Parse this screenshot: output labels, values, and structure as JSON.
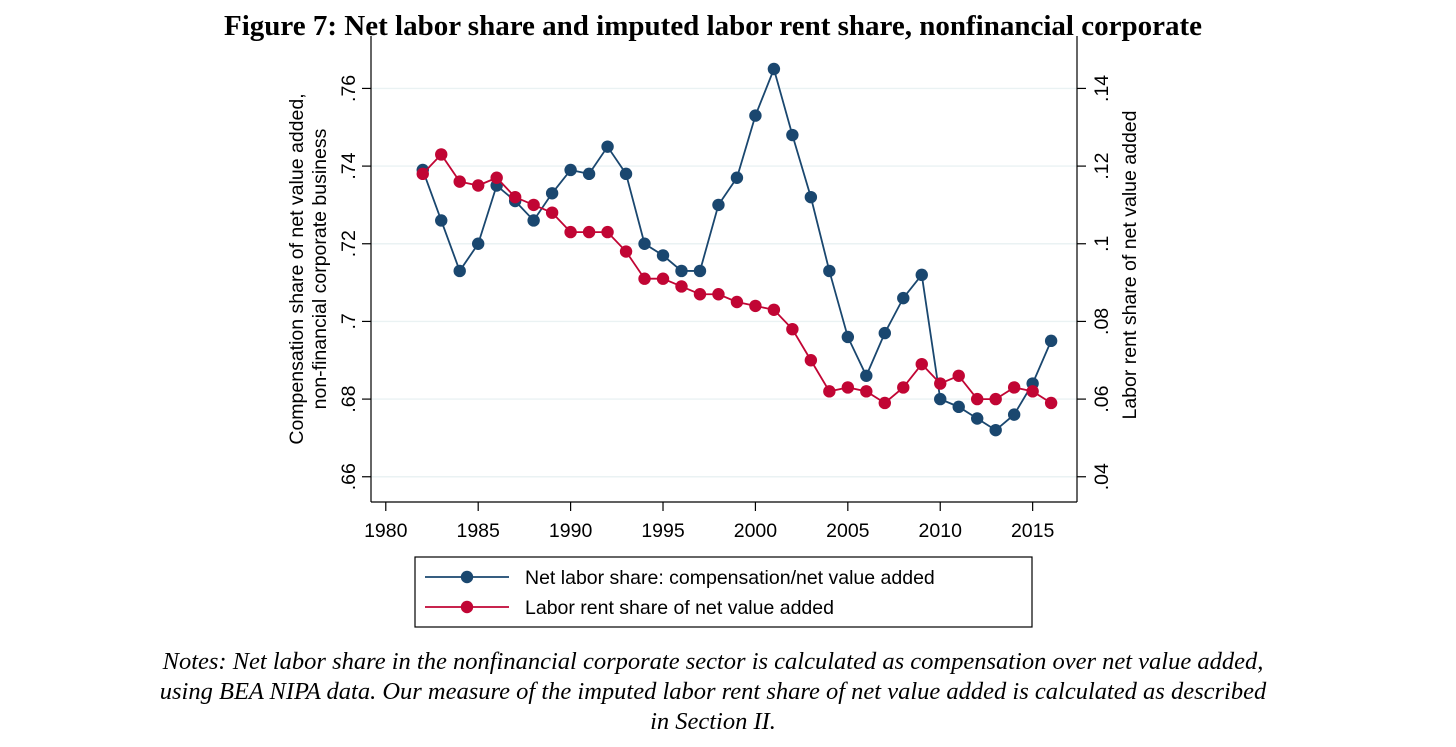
{
  "title": "Figure 7: Net labor share and imputed labor rent share, nonfinancial corporate",
  "notes": [
    "Notes: Net labor share in the nonfinancial corporate sector is calculated as compensation over net value added,",
    "using BEA NIPA data. Our measure of the imputed labor rent share of net value added is calculated as described",
    "in Section II."
  ],
  "chart_data": {
    "type": "line",
    "title": "",
    "xlabel": "",
    "ylabel": [
      "Compensation share of net value added,",
      "non-financial corporate business"
    ],
    "y2label": "Labor rent share of net value added",
    "x_ticks": [
      "1980",
      "1985",
      "1990",
      "1995",
      "2000",
      "2005",
      "2010",
      "2015"
    ],
    "y_ticks": [
      ".66",
      ".68",
      ".7",
      ".72",
      ".74",
      ".76"
    ],
    "y2_ticks": [
      ".04",
      ".06",
      ".08",
      ".1",
      ".12",
      ".14"
    ],
    "xlim": [
      1979.2,
      2017.4
    ],
    "ylim": [
      0.6535,
      0.7735
    ],
    "y2lim": [
      0.0335,
      0.1535
    ],
    "grid": true,
    "legend_position": "bottom",
    "x": [
      1982,
      1983,
      1984,
      1985,
      1986,
      1987,
      1988,
      1989,
      1990,
      1991,
      1992,
      1993,
      1994,
      1995,
      1996,
      1997,
      1998,
      1999,
      2000,
      2001,
      2002,
      2003,
      2004,
      2005,
      2006,
      2007,
      2008,
      2009,
      2010,
      2011,
      2012,
      2013,
      2014,
      2015,
      2016
    ],
    "series": [
      {
        "name": "Net labor share: compensation/net value added",
        "axis": "left",
        "color": "#1a476f",
        "values": [
          0.739,
          0.726,
          0.713,
          0.72,
          0.735,
          0.731,
          0.726,
          0.733,
          0.739,
          0.738,
          0.745,
          0.738,
          0.72,
          0.717,
          0.713,
          0.713,
          0.73,
          0.737,
          0.753,
          0.765,
          0.748,
          0.732,
          0.713,
          0.696,
          0.686,
          0.697,
          0.706,
          0.712,
          0.68,
          0.678,
          0.675,
          0.672,
          0.676,
          0.684,
          0.695
        ]
      },
      {
        "name": "Labor rent share of net value added",
        "axis": "right",
        "color": "#c10534",
        "values": [
          0.118,
          0.123,
          0.116,
          0.115,
          0.117,
          0.112,
          0.11,
          0.108,
          0.103,
          0.103,
          0.103,
          0.098,
          0.091,
          0.091,
          0.089,
          0.087,
          0.087,
          0.085,
          0.084,
          0.083,
          0.078,
          0.07,
          0.062,
          0.063,
          0.062,
          0.059,
          0.063,
          0.069,
          0.064,
          0.066,
          0.06,
          0.06,
          0.063,
          0.062,
          0.059
        ]
      }
    ]
  }
}
